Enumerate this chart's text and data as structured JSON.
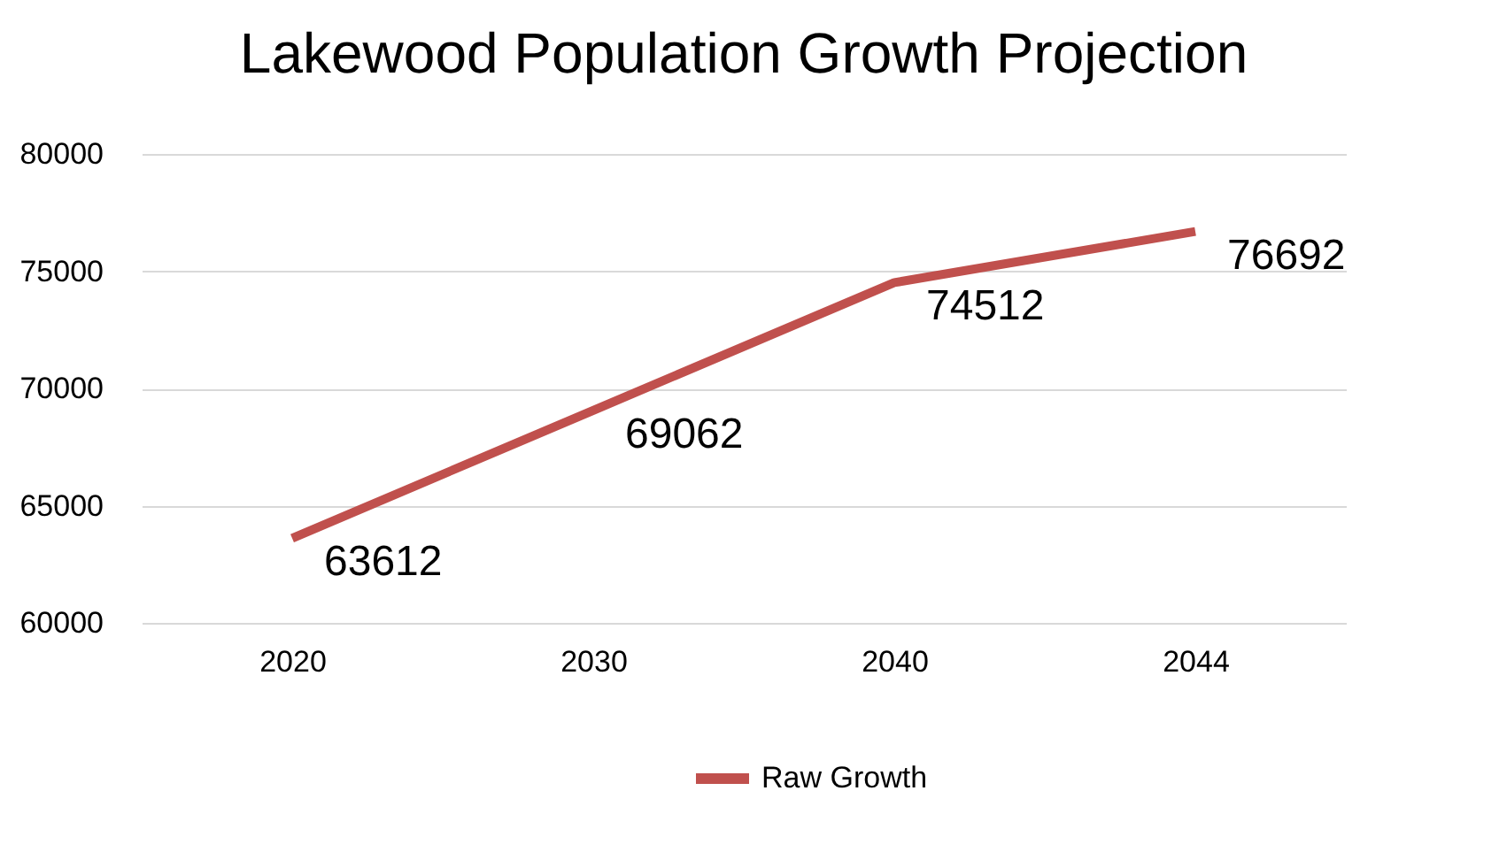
{
  "chart_data": {
    "type": "line",
    "title": "Lakewood Population Growth Projection",
    "categories": [
      "2020",
      "2030",
      "2040",
      "2044"
    ],
    "series": [
      {
        "name": "Raw Growth",
        "color": "#c0504d",
        "values": [
          63612,
          69062,
          74512,
          76692
        ]
      }
    ],
    "ylim": [
      60000,
      80000
    ],
    "yticks": [
      60000,
      65000,
      70000,
      75000,
      80000
    ],
    "grid": "y",
    "legend": "bottom",
    "data_labels": true,
    "marker": "none",
    "line_style": "solid"
  }
}
